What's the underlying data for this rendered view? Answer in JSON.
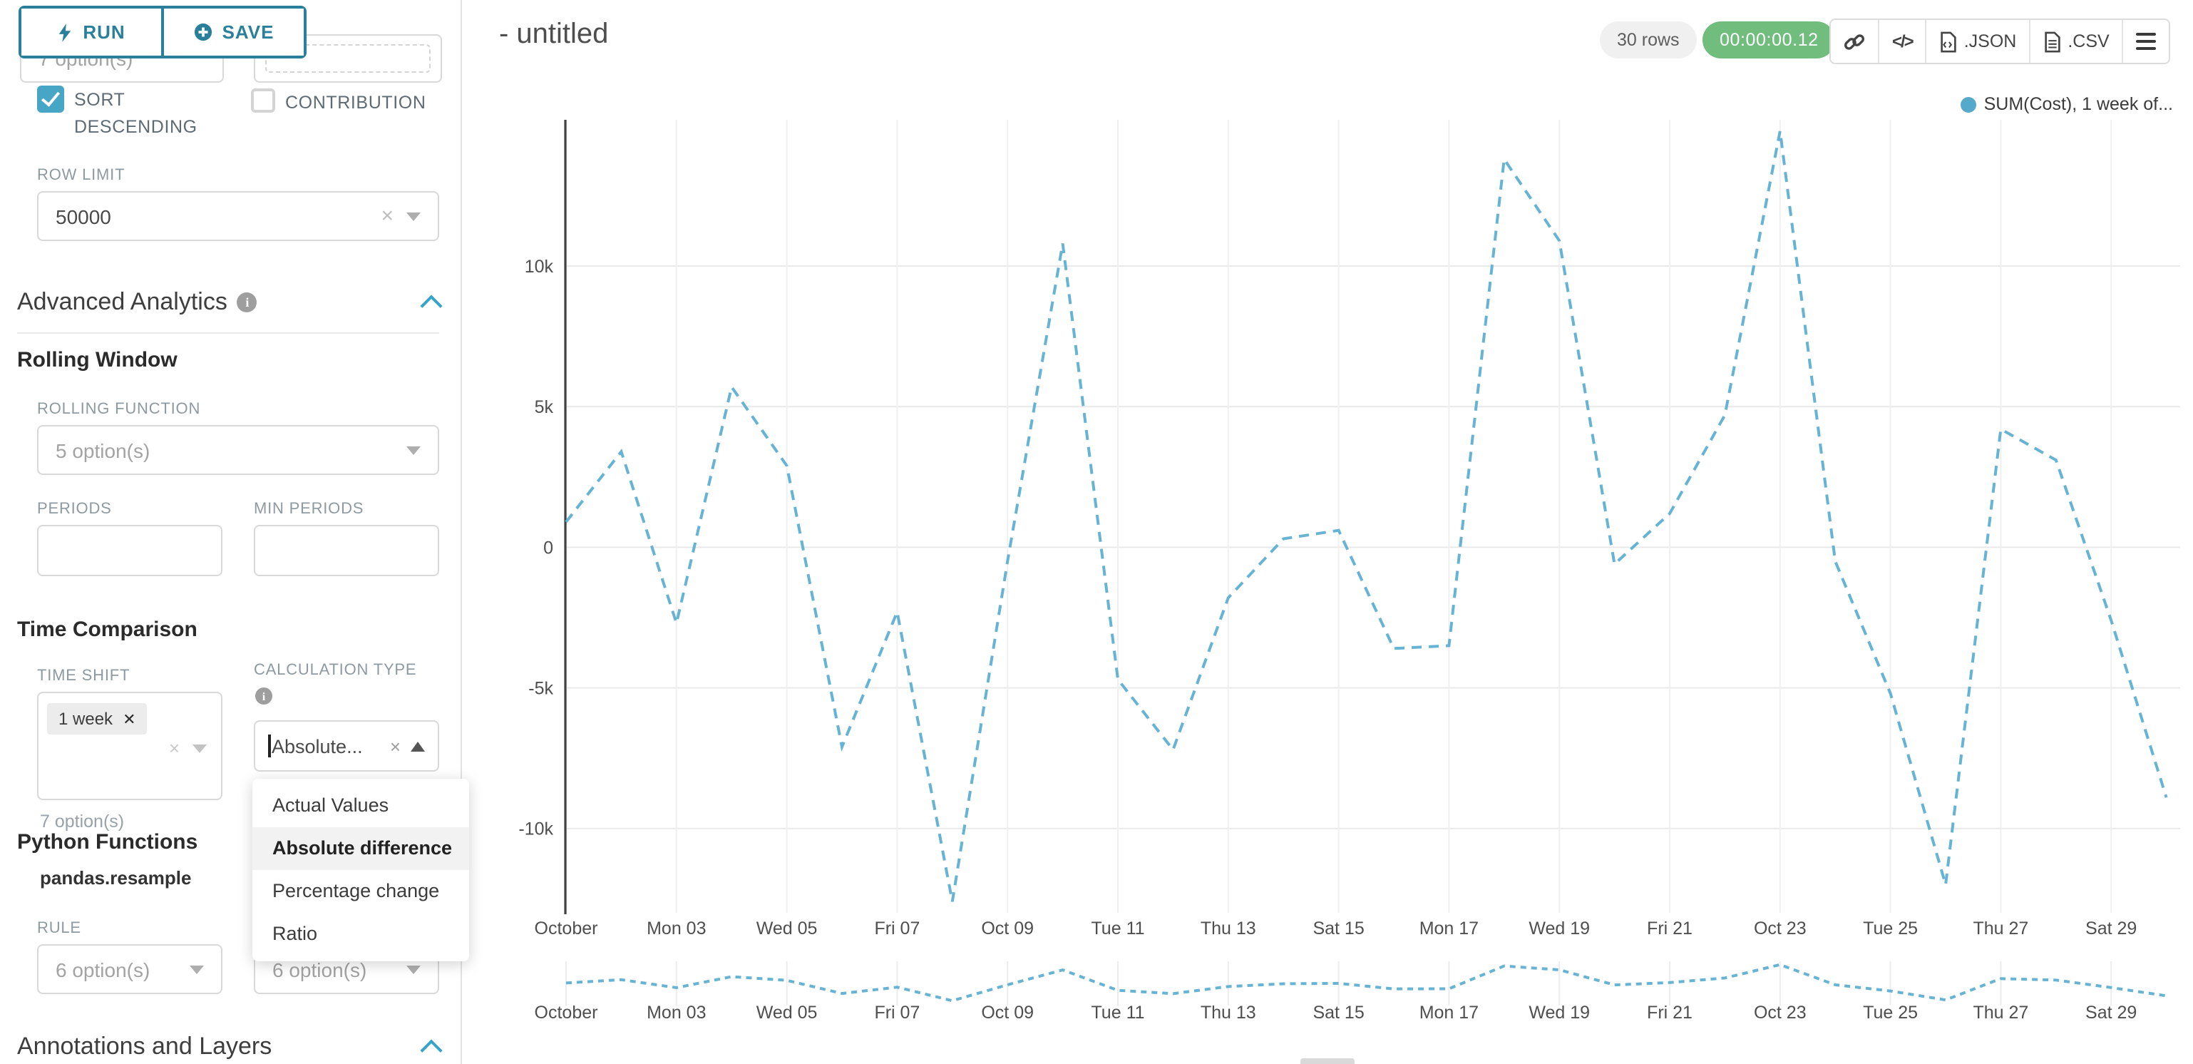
{
  "toolbar": {
    "run_label": "RUN",
    "save_label": "SAVE"
  },
  "sidebar": {
    "clipped_select_hint": "7 option(s)",
    "sort_descending_label": "SORT DESCENDING",
    "contribution_label": "CONTRIBUTION",
    "row_limit": {
      "label": "ROW LIMIT",
      "value": "50000"
    },
    "advanced_analytics": {
      "title": "Advanced Analytics"
    },
    "rolling_window": {
      "title": "Rolling Window",
      "rolling_function_label": "ROLLING FUNCTION",
      "rolling_function_value": "5 option(s)",
      "periods_label": "PERIODS",
      "min_periods_label": "MIN PERIODS"
    },
    "time_comparison": {
      "title": "Time Comparison",
      "time_shift_label": "TIME SHIFT",
      "time_shift_tag": "1 week",
      "time_shift_hint": "7 option(s)",
      "calculation_type_label": "CALCULATION TYPE",
      "calculation_type_value": "Absolute...",
      "dropdown_options": [
        "Actual Values",
        "Absolute difference",
        "Percentage change",
        "Ratio"
      ],
      "dropdown_selected": "Absolute difference"
    },
    "python_functions": {
      "title": "Python Functions",
      "function_name": "pandas.resample",
      "rule_label": "RULE",
      "rule_value": "6 option(s)",
      "method_value": "6 option(s)"
    },
    "annotations": {
      "title": "Annotations and Layers"
    }
  },
  "header": {
    "title": "- untitled",
    "rows_badge": "30 rows",
    "timer": "00:00:00.12",
    "json_label": ".JSON",
    "csv_label": ".CSV"
  },
  "legend_label": "SUM(Cost), 1 week of...",
  "colors": {
    "line": "#66b3d3",
    "legend_dot": "#55a9ca",
    "accent_teal": "#2a7f9b",
    "checkbox_blue": "#47a5c5",
    "timer_green": "#70bd7e",
    "chevron_blue": "#36a3c9"
  },
  "chart_data": {
    "type": "line",
    "title": "- untitled",
    "legend_position": "top-right",
    "grid": true,
    "line_style": "dashed",
    "line_color": "#66b3d3",
    "series": [
      {
        "name": "SUM(Cost), 1 week of...",
        "values": [
          900,
          3400,
          -2700,
          5700,
          2900,
          -7100,
          -2300,
          -12600,
          -500,
          10800,
          -4700,
          -7200,
          -1800,
          300,
          600,
          -3600,
          -3500,
          13800,
          10900,
          -600,
          1200,
          4700,
          14800,
          -500,
          -5200,
          -12000,
          4200,
          3100,
          -2600,
          -8900
        ]
      }
    ],
    "x_days": 30,
    "x_tick_positions": [
      0,
      2,
      4,
      6,
      8,
      10,
      12,
      14,
      16,
      18,
      20,
      22,
      24,
      26,
      28
    ],
    "x_tick_labels": [
      "October",
      "Mon 03",
      "Wed 05",
      "Fri 07",
      "Oct 09",
      "Tue 11",
      "Thu 13",
      "Sat 15",
      "Mon 17",
      "Wed 19",
      "Fri 21",
      "Oct 23",
      "Tue 25",
      "Thu 27",
      "Sat 29"
    ],
    "ylim": [
      -13000,
      15200
    ],
    "y_ticks": [
      {
        "value": 10000,
        "label": "10k"
      },
      {
        "value": 5000,
        "label": "5k"
      },
      {
        "value": 0,
        "label": "0"
      },
      {
        "value": -5000,
        "label": "-5k"
      },
      {
        "value": -10000,
        "label": "-10k"
      }
    ],
    "has_mini_context_chart": true
  }
}
